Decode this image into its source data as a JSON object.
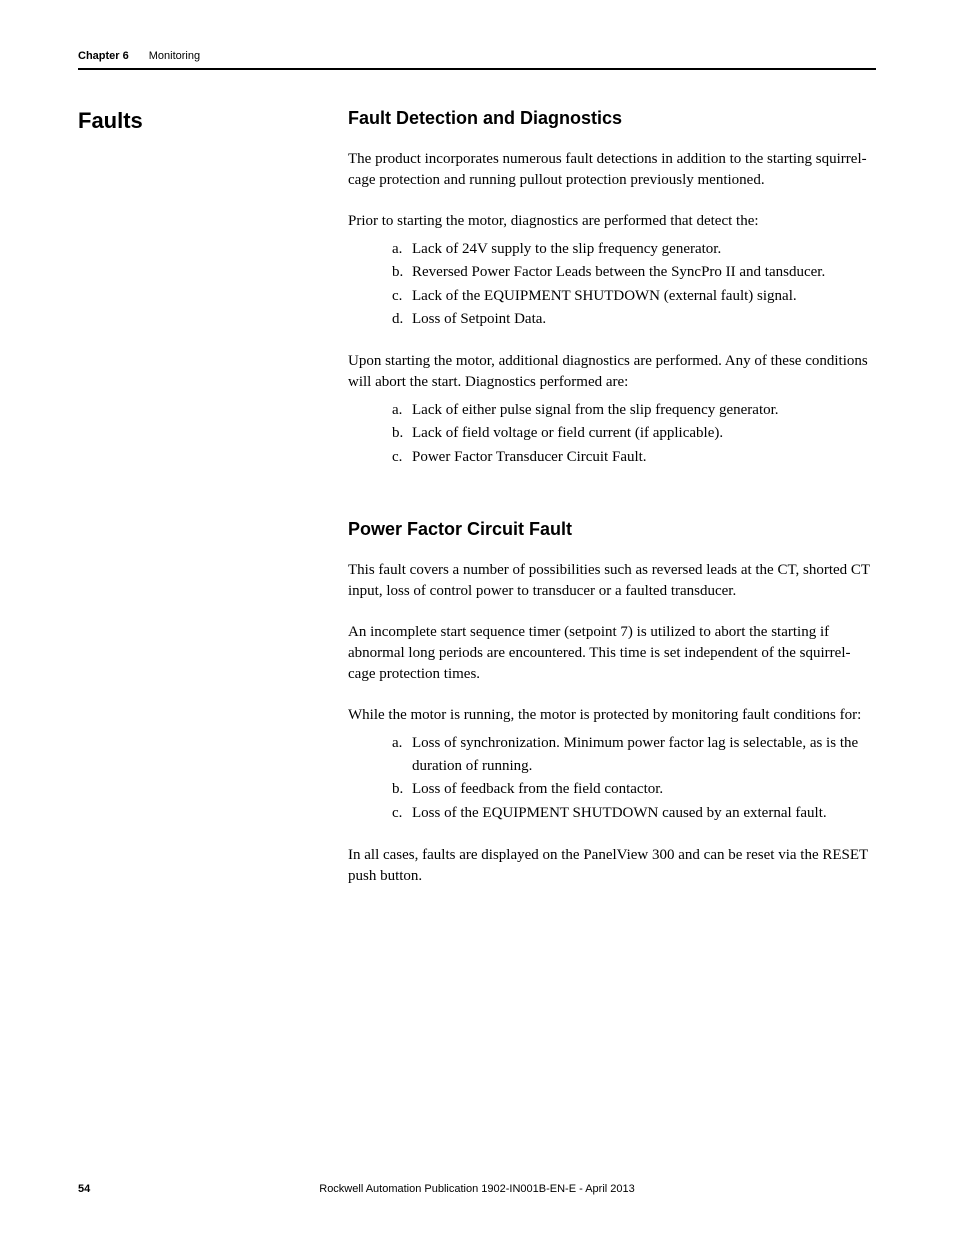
{
  "header": {
    "chapter_label": "Chapter 6",
    "chapter_title": "Monitoring"
  },
  "left_section": {
    "heading": "Faults"
  },
  "sections": {
    "fault_detection": {
      "heading": "Fault Detection and Diagnostics",
      "para1": "The product incorporates numerous fault detections in addition to the starting squirrel-cage protection and running pullout protection previously mentioned.",
      "para2": "Prior to starting the motor, diagnostics are performed that detect the:",
      "list1": {
        "a": "Lack of 24V supply to the slip frequency generator.",
        "b": "Reversed Power Factor Leads between the SyncPro II and tansducer.",
        "c": "Lack of the EQUIPMENT SHUTDOWN (external fault) signal.",
        "d": "Loss of Setpoint Data."
      },
      "para3": "Upon starting the motor, additional diagnostics are performed. Any of these conditions will abort the start. Diagnostics performed are:",
      "list2": {
        "a": "Lack of either pulse signal from the slip frequency generator.",
        "b": "Lack of field voltage or field current (if applicable).",
        "c": "Power Factor Transducer Circuit Fault."
      }
    },
    "power_factor": {
      "heading": "Power Factor Circuit Fault",
      "para1": "This fault covers a number of possibilities such as reversed leads at the CT, shorted CT input, loss of control power to transducer or a faulted transducer.",
      "para2": "An incomplete start sequence timer (setpoint 7) is utilized to abort the starting if abnormal long periods are encountered. This time is set independent of the squirrel-cage protection times.",
      "para3": "While the motor is running, the motor is protected by monitoring fault conditions for:",
      "list1": {
        "a": "Loss of synchronization. Minimum power factor lag is selectable, as is the duration of running.",
        "b": "Loss of feedback from the field contactor.",
        "c": "Loss of the EQUIPMENT SHUTDOWN caused by an external fault."
      },
      "para4": "In all cases, faults are displayed on the PanelView 300 and can be reset via the RESET push button."
    }
  },
  "footer": {
    "page_number": "54",
    "publication": "Rockwell Automation Publication 1902-IN001B-EN-E - April 2013"
  },
  "markers": {
    "a": "a.",
    "b": "b.",
    "c": "c.",
    "d": "d."
  }
}
